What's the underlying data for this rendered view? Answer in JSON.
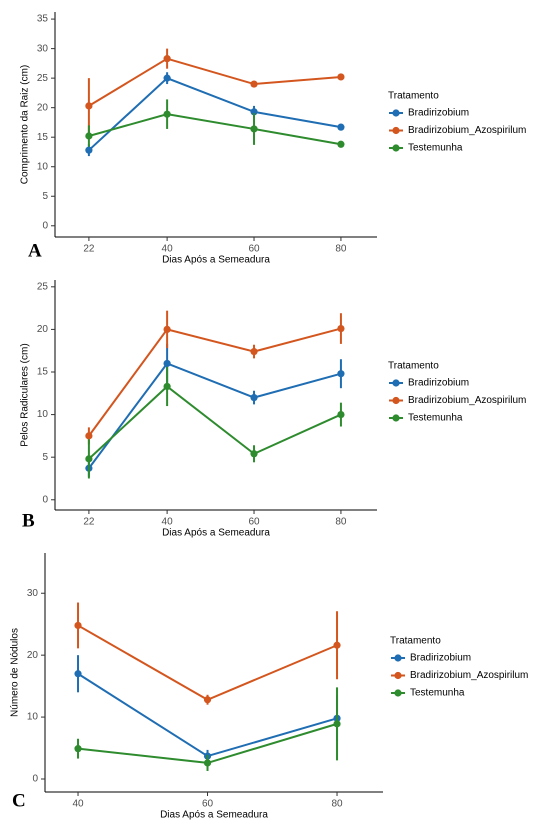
{
  "chart_data": [
    {
      "type": "line",
      "panel_label": "A",
      "x_label": "Dias Após a Semeadura",
      "y_label": "Comprimento da Raiz (cm)",
      "x": [
        22,
        40,
        60,
        80
      ],
      "xlim": [
        14.2,
        88.3
      ],
      "xticks": [
        22,
        40,
        60,
        80
      ],
      "ylim": [
        -1.9,
        36.2
      ],
      "yticks": [
        0,
        5,
        10,
        15,
        20,
        25,
        30,
        35
      ],
      "legend_title": "Tratamento",
      "series": [
        {
          "name": "Bradirizobium",
          "color": "#1f6db3",
          "values": [
            12.8,
            25,
            19.3,
            16.7
          ],
          "errors": [
            1,
            1,
            1,
            0.5
          ]
        },
        {
          "name": "Bradirizobium_Azospirilum",
          "color": "#d4561f",
          "values": [
            20.3,
            28.3,
            24,
            25.2
          ],
          "errors": [
            4.7,
            1.7,
            0.3,
            0.5
          ]
        },
        {
          "name": "Testemunha",
          "color": "#2e8b2e",
          "values": [
            15.2,
            18.9,
            16.4,
            13.8
          ],
          "errors": [
            1.8,
            2.5,
            2.7,
            0.4
          ]
        }
      ]
    },
    {
      "type": "line",
      "panel_label": "B",
      "x_label": "Dias Após a Semeadura",
      "y_label": "Pelos Radiculares (cm)",
      "x": [
        22,
        40,
        60,
        80
      ],
      "xlim": [
        14.2,
        88.3
      ],
      "xticks": [
        22,
        40,
        60,
        80
      ],
      "ylim": [
        -1.2,
        25.8
      ],
      "yticks": [
        0,
        5,
        10,
        15,
        20,
        25
      ],
      "legend_title": "Tratamento",
      "series": [
        {
          "name": "Bradirizobium",
          "color": "#1f6db3",
          "values": [
            3.7,
            16,
            12,
            14.8
          ],
          "errors": [
            1,
            2.3,
            0.8,
            1.7
          ]
        },
        {
          "name": "Bradirizobium_Azospirilum",
          "color": "#d4561f",
          "values": [
            7.5,
            20,
            17.4,
            20.1
          ],
          "errors": [
            1,
            2.2,
            0.8,
            1.8
          ]
        },
        {
          "name": "Testemunha",
          "color": "#2e8b2e",
          "values": [
            4.8,
            13.3,
            5.4,
            10
          ],
          "errors": [
            2.3,
            2.3,
            1,
            1.4
          ]
        }
      ]
    },
    {
      "type": "line",
      "panel_label": "C",
      "x_label": "Dias Após a Semeadura",
      "y_label": "Número de Nódulos",
      "x": [
        40,
        60,
        80
      ],
      "xlim": [
        34.9,
        87.1
      ],
      "xticks": [
        40,
        60,
        80
      ],
      "ylim": [
        -2.1,
        36.5
      ],
      "yticks": [
        0,
        10,
        20,
        30
      ],
      "legend_title": "Tratamento",
      "series": [
        {
          "name": "Bradirizobium",
          "color": "#1f6db3",
          "values": [
            17,
            3.7,
            9.8
          ],
          "errors": [
            3,
            1,
            3.7
          ]
        },
        {
          "name": "Bradirizobium_Azospirilum",
          "color": "#d4561f",
          "values": [
            24.8,
            12.8,
            21.6
          ],
          "errors": [
            3.7,
            0.8,
            5.5
          ]
        },
        {
          "name": "Testemunha",
          "color": "#2e8b2e",
          "values": [
            4.9,
            2.6,
            8.9
          ],
          "errors": [
            1.6,
            1.3,
            5.9
          ]
        }
      ]
    }
  ]
}
